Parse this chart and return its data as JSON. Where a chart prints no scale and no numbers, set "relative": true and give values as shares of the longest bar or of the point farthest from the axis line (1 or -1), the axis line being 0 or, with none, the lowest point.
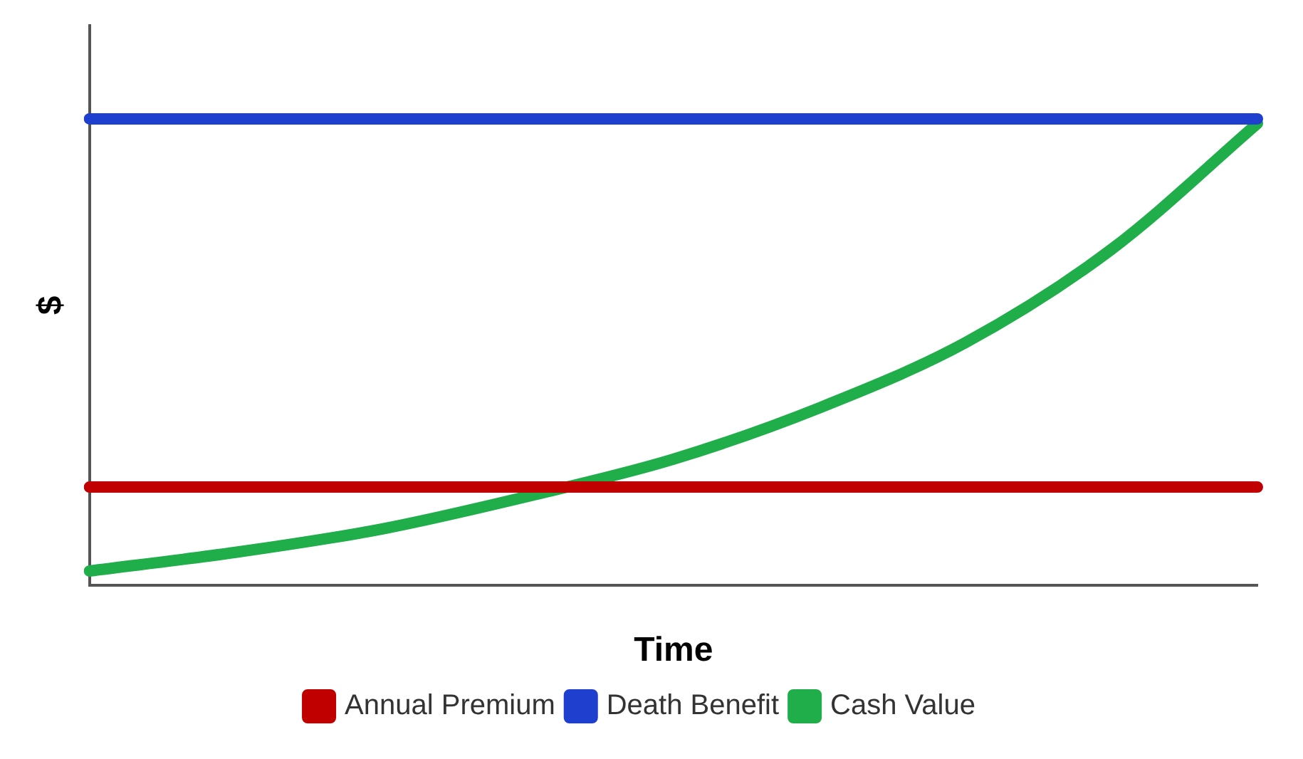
{
  "chart_data": {
    "type": "line",
    "xlabel": "Time",
    "ylabel": "$",
    "relative": true,
    "legend": "bottom",
    "marker": "none",
    "grid": false,
    "categories": [
      null,
      null,
      null,
      null,
      null,
      null,
      null,
      null,
      null
    ],
    "series": [
      {
        "name": "Annual Premium",
        "color": "#c00000",
        "values": [
          0.21,
          0.21,
          0.21,
          0.21,
          0.21,
          0.21,
          0.21,
          0.21,
          0.21
        ]
      },
      {
        "name": "Death Benefit",
        "color": "#1f3fcf",
        "values": [
          1,
          1,
          1,
          1,
          1,
          1,
          1,
          1,
          1
        ]
      },
      {
        "name": "Cash Value",
        "color": "#1fae4a",
        "values": [
          0.03,
          0.07,
          0.12,
          0.19,
          0.27,
          0.38,
          0.52,
          0.72,
          0.99
        ]
      }
    ]
  }
}
